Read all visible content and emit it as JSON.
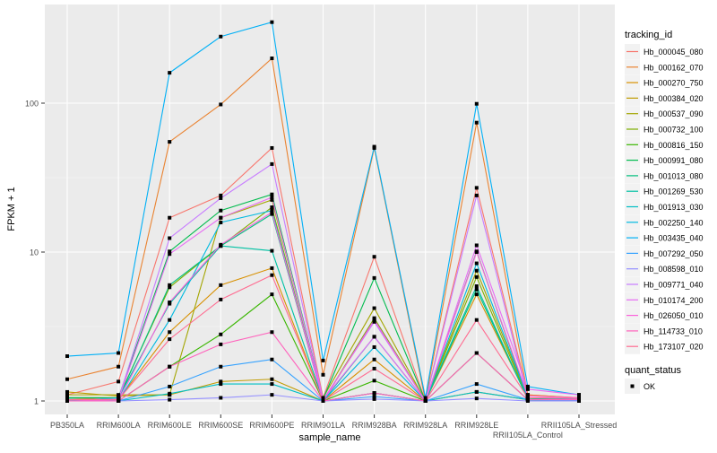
{
  "chart_data": {
    "type": "line",
    "title": "",
    "xlabel": "sample_name",
    "ylabel": "FPKM + 1",
    "y_scale": "log10",
    "ylim": [
      0.95,
      400
    ],
    "y_ticks": [
      1,
      10,
      100
    ],
    "y_tick_labels": [
      "1",
      "10",
      "100"
    ],
    "grid": true,
    "legend_position": "right",
    "categories": [
      "PB350LA",
      "RRIM600LA",
      "RRIM600LE",
      "RRIM600SE",
      "RRIM600PE",
      "RRIM901LA",
      "RRIM928BA",
      "RRIM928LA",
      "RRIM928LE",
      "RRII105LA_Control",
      "RRII105LA_Stressed"
    ],
    "legend_title": "tracking_id",
    "series": [
      {
        "name": "Hb_000045_080",
        "color": "#F8766D",
        "values": [
          1.1,
          1.35,
          17,
          24,
          50,
          1.05,
          9.3,
          1.0,
          27,
          1.1,
          1.05
        ]
      },
      {
        "name": "Hb_000162_070",
        "color": "#EA8331",
        "values": [
          1.4,
          1.7,
          55,
          98,
          200,
          1.5,
          50,
          1.0,
          74,
          1.1,
          1.05
        ]
      },
      {
        "name": "Hb_000270_750",
        "color": "#D89000",
        "values": [
          1.05,
          1.02,
          2.9,
          6.0,
          7.8,
          1.0,
          1.9,
          1.0,
          5.2,
          1.05,
          1.03
        ]
      },
      {
        "name": "Hb_000384_020",
        "color": "#C09B00",
        "values": [
          1.15,
          1.08,
          1.1,
          1.35,
          1.4,
          1.0,
          1.13,
          1.0,
          1.15,
          1.02,
          1.02
        ]
      },
      {
        "name": "Hb_000537_090",
        "color": "#A3A500",
        "values": [
          1.1,
          1.1,
          1.1,
          17,
          22.4,
          1.05,
          4.2,
          1.0,
          7.5,
          1.05,
          1.03
        ]
      },
      {
        "name": "Hb_000732_100",
        "color": "#7CAE00",
        "values": [
          1.05,
          1.05,
          5.8,
          11,
          20,
          1.0,
          3.6,
          1.0,
          6.8,
          1.03,
          1.02
        ]
      },
      {
        "name": "Hb_000816_150",
        "color": "#39B600",
        "values": [
          1.02,
          1.0,
          1.7,
          2.8,
          5.2,
          1.0,
          1.37,
          1.0,
          2.1,
          1.02,
          1.01
        ]
      },
      {
        "name": "Hb_000991_080",
        "color": "#00BB4E",
        "values": [
          1.05,
          1.05,
          10.1,
          19,
          24.4,
          1.03,
          6.7,
          1.0,
          10.1,
          1.05,
          1.03
        ]
      },
      {
        "name": "Hb_001013_080",
        "color": "#00BF7D",
        "values": [
          1.02,
          1.03,
          6.0,
          11,
          18,
          1.0,
          3.5,
          1.0,
          5.6,
          1.03,
          1.02
        ]
      },
      {
        "name": "Hb_001269_530",
        "color": "#00C1A3",
        "values": [
          1.0,
          1.05,
          4.5,
          11,
          10.2,
          1.0,
          2.7,
          1.0,
          5.9,
          1.02,
          1.02
        ]
      },
      {
        "name": "Hb_001913_030",
        "color": "#00BFC4",
        "values": [
          1.03,
          1.0,
          1.12,
          1.3,
          1.3,
          1.0,
          1.13,
          1.0,
          1.15,
          1.02,
          1.01
        ]
      },
      {
        "name": "Hb_002250_140",
        "color": "#00BAE0",
        "values": [
          1.02,
          1.0,
          3.5,
          15.8,
          19,
          1.0,
          2.3,
          1.0,
          8.4,
          1.05,
          1.03
        ]
      },
      {
        "name": "Hb_003435_040",
        "color": "#00B0F6",
        "values": [
          2.0,
          2.1,
          160,
          280,
          350,
          1.87,
          51,
          1.05,
          99,
          1.25,
          1.1
        ]
      },
      {
        "name": "Hb_007292_050",
        "color": "#35A2FF",
        "values": [
          1.0,
          1.0,
          1.25,
          1.7,
          1.9,
          1.0,
          1.07,
          1.0,
          1.3,
          1.02,
          1.01
        ]
      },
      {
        "name": "Hb_008598_010",
        "color": "#9590FF",
        "values": [
          1.0,
          1.0,
          1.02,
          1.05,
          1.1,
          1.0,
          1.03,
          1.0,
          1.04,
          1.0,
          1.0
        ]
      },
      {
        "name": "Hb_009771_040",
        "color": "#C77CFF",
        "values": [
          1.02,
          1.03,
          12.4,
          23,
          39,
          1.02,
          3.4,
          1.0,
          24,
          1.05,
          1.04
        ]
      },
      {
        "name": "Hb_010174_200",
        "color": "#E76BF3",
        "values": [
          1.0,
          1.02,
          9.7,
          17,
          23.3,
          1.02,
          2.7,
          1.0,
          11.1,
          1.2,
          1.1
        ]
      },
      {
        "name": "Hb_026050_010",
        "color": "#FA62DB",
        "values": [
          1.0,
          1.0,
          4.6,
          11.2,
          18.5,
          1.0,
          3.5,
          1.0,
          10,
          1.08,
          1.05
        ]
      },
      {
        "name": "Hb_114733_010",
        "color": "#FF62BC",
        "values": [
          1.0,
          1.0,
          1.7,
          2.4,
          2.9,
          1.0,
          1.13,
          1.0,
          2.1,
          1.02,
          1.02
        ]
      },
      {
        "name": "Hb_173107_020",
        "color": "#FF6C91",
        "values": [
          1.02,
          1.02,
          2.6,
          4.8,
          7.0,
          1.0,
          1.65,
          1.0,
          3.5,
          1.05,
          1.04
        ]
      }
    ],
    "shape_legend": {
      "title": "quant_status",
      "items": [
        "OK"
      ]
    }
  }
}
